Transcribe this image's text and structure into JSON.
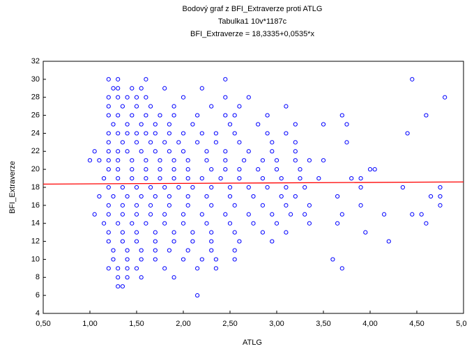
{
  "chart_data": {
    "type": "scatter",
    "title": "Bodový graf z BFI_Extraverze proti ATLG",
    "subtitle": "Tabulka1 10v*1187c",
    "equation": "BFI_Extraverze = 18,3335+0,0535*x",
    "xlabel": "ATLG",
    "ylabel": "BFI_Extraverze",
    "color": "#0000ff",
    "regression": {
      "intercept": 18.3335,
      "slope": 0.0535,
      "color": "#ff0000"
    },
    "xlim": [
      0.5,
      5.0
    ],
    "xticks": [
      {
        "value": 0.5,
        "label": "0,50"
      },
      {
        "value": 1.0,
        "label": "1,00"
      },
      {
        "value": 1.5,
        "label": "1,50"
      },
      {
        "value": 2.0,
        "label": "2,00"
      },
      {
        "value": 2.5,
        "label": "2,50"
      },
      {
        "value": 3.0,
        "label": "3,00"
      },
      {
        "value": 3.5,
        "label": "3,50"
      },
      {
        "value": 4.0,
        "label": "4,00"
      },
      {
        "value": 4.5,
        "label": "4,50"
      },
      {
        "value": 5.0,
        "label": "5,00"
      }
    ],
    "ylim": [
      4,
      32
    ],
    "yticks": [
      4,
      6,
      8,
      10,
      12,
      14,
      16,
      18,
      20,
      22,
      24,
      26,
      28,
      30,
      32
    ],
    "x": [
      1.2,
      1.3,
      1.6,
      2.45,
      4.45,
      1.25,
      1.3,
      1.45,
      1.55,
      1.8,
      2.2,
      1.2,
      1.3,
      1.4,
      1.5,
      1.6,
      2.0,
      2.45,
      2.7,
      4.8,
      1.2,
      1.35,
      1.5,
      1.65,
      1.9,
      2.3,
      2.6,
      3.1,
      1.2,
      1.3,
      1.45,
      1.6,
      1.75,
      1.9,
      2.15,
      2.45,
      2.55,
      2.9,
      3.7,
      4.6,
      1.25,
      1.4,
      1.55,
      1.7,
      1.85,
      2.1,
      2.5,
      2.8,
      3.2,
      3.5,
      3.75,
      1.2,
      1.3,
      1.4,
      1.5,
      1.6,
      1.7,
      1.85,
      2.0,
      2.2,
      2.35,
      2.55,
      2.9,
      3.1,
      4.4,
      1.2,
      1.35,
      1.5,
      1.65,
      1.8,
      1.95,
      2.15,
      2.35,
      2.6,
      2.95,
      3.2,
      3.75,
      1.05,
      1.2,
      1.3,
      1.4,
      1.55,
      1.7,
      1.85,
      2.0,
      2.25,
      2.45,
      2.7,
      2.95,
      3.2,
      1.0,
      1.1,
      1.2,
      1.3,
      1.45,
      1.6,
      1.75,
      1.9,
      2.05,
      2.25,
      2.45,
      2.65,
      2.85,
      3.0,
      3.2,
      3.35,
      3.5,
      1.2,
      1.3,
      1.45,
      1.6,
      1.75,
      1.9,
      2.05,
      2.3,
      2.45,
      2.6,
      2.8,
      3.0,
      3.25,
      4.0,
      4.05,
      1.15,
      1.3,
      1.45,
      1.6,
      1.75,
      1.9,
      2.05,
      2.2,
      2.4,
      2.6,
      2.85,
      3.05,
      3.25,
      3.45,
      3.8,
      3.9,
      1.2,
      1.35,
      1.5,
      1.65,
      1.8,
      1.95,
      2.1,
      2.3,
      2.5,
      2.7,
      2.9,
      3.1,
      3.3,
      3.9,
      4.35,
      4.75,
      1.1,
      1.25,
      1.4,
      1.55,
      1.7,
      1.85,
      2.05,
      2.25,
      2.5,
      2.75,
      3.05,
      3.2,
      3.65,
      4.65,
      4.75,
      1.2,
      1.35,
      1.5,
      1.65,
      1.85,
      2.05,
      2.3,
      2.55,
      2.85,
      3.1,
      3.35,
      3.9,
      4.75,
      1.05,
      1.2,
      1.35,
      1.5,
      1.65,
      1.8,
      2.0,
      2.2,
      2.45,
      2.7,
      2.95,
      3.15,
      3.3,
      3.7,
      4.15,
      4.45,
      4.55,
      1.15,
      1.3,
      1.45,
      1.6,
      1.8,
      2.0,
      2.25,
      2.5,
      2.75,
      3.0,
      3.35,
      3.65,
      4.6,
      1.2,
      1.35,
      1.5,
      1.7,
      1.9,
      2.1,
      2.3,
      2.55,
      2.85,
      3.1,
      3.95,
      1.2,
      1.35,
      1.5,
      1.7,
      1.9,
      2.1,
      2.3,
      2.6,
      2.95,
      4.2,
      1.25,
      1.4,
      1.55,
      1.7,
      1.85,
      2.05,
      2.3,
      2.55,
      1.25,
      1.4,
      1.55,
      1.7,
      2.0,
      2.2,
      2.35,
      2.55,
      3.6,
      1.2,
      1.3,
      1.4,
      1.5,
      1.8,
      2.15,
      2.35,
      3.7,
      1.3,
      1.4,
      1.55,
      1.9,
      1.3,
      1.35,
      2.15
    ],
    "values": [
      30,
      30,
      30,
      30,
      30,
      29,
      29,
      29,
      29,
      29,
      29,
      28,
      28,
      28,
      28,
      28,
      28,
      28,
      28,
      28,
      27,
      27,
      27,
      27,
      27,
      27,
      27,
      27,
      26,
      26,
      26,
      26,
      26,
      26,
      26,
      26,
      26,
      26,
      26,
      26,
      25,
      25,
      25,
      25,
      25,
      25,
      25,
      25,
      25,
      25,
      25,
      24,
      24,
      24,
      24,
      24,
      24,
      24,
      24,
      24,
      24,
      24,
      24,
      24,
      24,
      23,
      23,
      23,
      23,
      23,
      23,
      23,
      23,
      23,
      23,
      23,
      23,
      22,
      22,
      22,
      22,
      22,
      22,
      22,
      22,
      22,
      22,
      22,
      22,
      22,
      21,
      21,
      21,
      21,
      21,
      21,
      21,
      21,
      21,
      21,
      21,
      21,
      21,
      21,
      21,
      21,
      21,
      20,
      20,
      20,
      20,
      20,
      20,
      20,
      20,
      20,
      20,
      20,
      20,
      20,
      20,
      20,
      19,
      19,
      19,
      19,
      19,
      19,
      19,
      19,
      19,
      19,
      19,
      19,
      19,
      19,
      19,
      19,
      18,
      18,
      18,
      18,
      18,
      18,
      18,
      18,
      18,
      18,
      18,
      18,
      18,
      18,
      18,
      18,
      17,
      17,
      17,
      17,
      17,
      17,
      17,
      17,
      17,
      17,
      17,
      17,
      17,
      17,
      17,
      16,
      16,
      16,
      16,
      16,
      16,
      16,
      16,
      16,
      16,
      16,
      16,
      16,
      15,
      15,
      15,
      15,
      15,
      15,
      15,
      15,
      15,
      15,
      15,
      15,
      15,
      15,
      15,
      15,
      15,
      14,
      14,
      14,
      14,
      14,
      14,
      14,
      14,
      14,
      14,
      14,
      14,
      14,
      13,
      13,
      13,
      13,
      13,
      13,
      13,
      13,
      13,
      13,
      13,
      12,
      12,
      12,
      12,
      12,
      12,
      12,
      12,
      12,
      12,
      11,
      11,
      11,
      11,
      11,
      11,
      11,
      11,
      10,
      10,
      10,
      10,
      10,
      10,
      10,
      10,
      10,
      9,
      9,
      9,
      9,
      9,
      9,
      9,
      9,
      8,
      8,
      8,
      8,
      7,
      7,
      6
    ]
  }
}
